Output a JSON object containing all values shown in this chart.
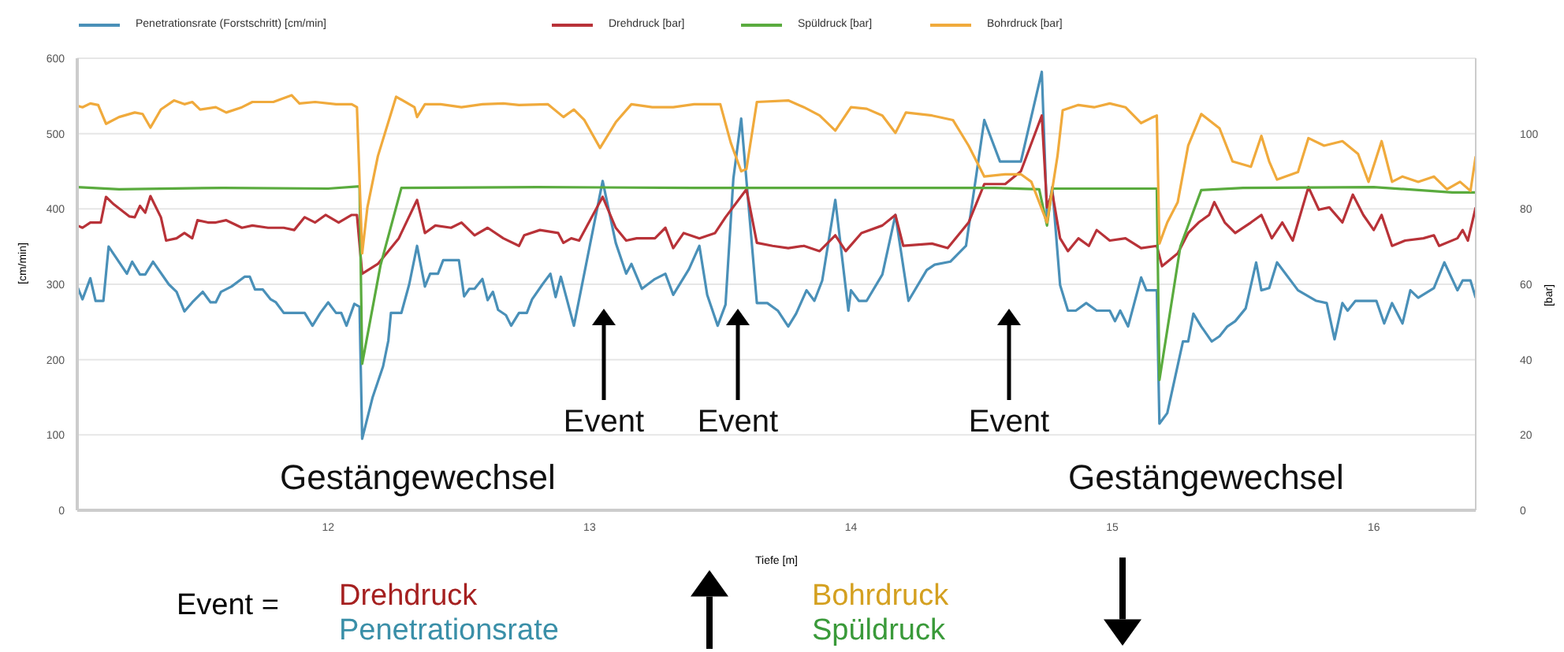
{
  "chart_data": {
    "type": "line",
    "xlabel": "Tiefe [m]",
    "ylabel": "[cm/min]",
    "y2label": "[bar]",
    "xlim": [
      11.04,
      16.39
    ],
    "xticks": [
      12,
      13,
      14,
      15,
      16
    ],
    "ylim": [
      0,
      600
    ],
    "yticks": [
      0,
      100,
      200,
      300,
      400,
      500,
      600
    ],
    "y2lim": [
      0,
      120
    ],
    "y2ticks": [
      0,
      20,
      40,
      60,
      80,
      100
    ],
    "grid": "y",
    "legend": "top",
    "marker": "none",
    "line_style": "solid",
    "annotations": [
      "Event",
      "Event",
      "Event",
      "Gestängewechsel",
      "Gestängewechsel",
      "Event =",
      "Drehdruck",
      "Penetrationsrate",
      "Bohrdruck",
      "Spüldruck"
    ],
    "series": [
      {
        "name": "Penetrationsrate (Forstschritt) [cm/min]",
        "color": "#4a90b8",
        "axis": "y",
        "x": [
          11.04,
          11.06,
          11.09,
          11.11,
          11.14,
          11.16,
          11.23,
          11.25,
          11.28,
          11.3,
          11.33,
          11.39,
          11.42,
          11.45,
          11.48,
          11.52,
          11.55,
          11.57,
          11.59,
          11.63,
          11.68,
          11.7,
          11.72,
          11.75,
          11.78,
          11.8,
          11.83,
          11.91,
          11.94,
          11.97,
          12.0,
          12.03,
          12.05,
          12.07,
          12.1,
          12.12,
          12.13,
          12.17,
          12.21,
          12.23,
          12.24,
          12.28,
          12.31,
          12.34,
          12.37,
          12.39,
          12.42,
          12.44,
          12.5,
          12.52,
          12.54,
          12.56,
          12.59,
          12.61,
          12.63,
          12.65,
          12.68,
          12.7,
          12.73,
          12.76,
          12.78,
          12.82,
          12.85,
          12.87,
          12.89,
          12.94,
          13.05,
          13.1,
          13.14,
          13.16,
          13.2,
          13.25,
          13.29,
          13.32,
          13.38,
          13.42,
          13.45,
          13.49,
          13.52,
          13.55,
          13.58,
          13.64,
          13.68,
          13.72,
          13.76,
          13.79,
          13.83,
          13.86,
          13.89,
          13.94,
          13.99,
          14.0,
          14.03,
          14.06,
          14.12,
          14.17,
          14.22,
          14.29,
          14.32,
          14.38,
          14.44,
          14.51,
          14.57,
          14.65,
          14.73,
          14.75,
          14.77,
          14.8,
          14.83,
          14.86,
          14.9,
          14.94,
          14.99,
          15.01,
          15.03,
          15.06,
          15.11,
          15.13,
          15.17,
          15.18,
          15.21,
          15.27,
          15.29,
          15.31,
          15.34,
          15.38,
          15.41,
          15.44,
          15.47,
          15.51,
          15.55,
          15.57,
          15.6,
          15.63,
          15.71,
          15.78,
          15.82,
          15.85,
          15.88,
          15.9,
          15.93,
          15.98,
          16.01,
          16.04,
          16.07,
          16.11,
          16.14,
          16.17,
          16.23,
          16.27,
          16.32,
          16.34,
          16.37,
          16.39
        ],
        "values": [
          297,
          280,
          308,
          278,
          278,
          350,
          314,
          330,
          313,
          313,
          330,
          300,
          290,
          264,
          276,
          290,
          276,
          276,
          290,
          297,
          310,
          310,
          293,
          293,
          280,
          276,
          262,
          262,
          245,
          262,
          276,
          262,
          262,
          245,
          274,
          270,
          95,
          150,
          191,
          225,
          262,
          262,
          300,
          351,
          297,
          314,
          314,
          332,
          332,
          284,
          294,
          294,
          307,
          279,
          290,
          266,
          259,
          245,
          262,
          262,
          280,
          300,
          314,
          283,
          310,
          245,
          437,
          355,
          314,
          327,
          294,
          307,
          314,
          286,
          320,
          351,
          286,
          245,
          273,
          440,
          520,
          275,
          275,
          265,
          244,
          261,
          292,
          278,
          305,
          412,
          265,
          292,
          278,
          278,
          313,
          392,
          278,
          319,
          326,
          330,
          351,
          518,
          463,
          463,
          582,
          388,
          429,
          299,
          265,
          265,
          275,
          265,
          265,
          251,
          265,
          244,
          309,
          292,
          292,
          115,
          129,
          224,
          224,
          261,
          244,
          224,
          231,
          244,
          251,
          268,
          329,
          292,
          295,
          329,
          292,
          278,
          275,
          227,
          275,
          265,
          278,
          278,
          278,
          248,
          275,
          248,
          292,
          282,
          295,
          329,
          292,
          305,
          305,
          282
        ]
      },
      {
        "name": "Drehdruck [bar]",
        "color": "#b83238",
        "axis": "y2",
        "x": [
          11.04,
          11.06,
          11.09,
          11.13,
          11.15,
          11.18,
          11.24,
          11.26,
          11.28,
          11.3,
          11.32,
          11.36,
          11.38,
          11.42,
          11.45,
          11.48,
          11.5,
          11.54,
          11.57,
          11.61,
          11.67,
          11.71,
          11.77,
          11.83,
          11.87,
          11.91,
          11.95,
          11.99,
          12.04,
          12.09,
          12.11,
          12.13,
          12.19,
          12.27,
          12.34,
          12.37,
          12.41,
          12.47,
          12.51,
          12.56,
          12.61,
          12.67,
          12.73,
          12.75,
          12.81,
          12.88,
          12.9,
          12.93,
          12.96,
          13.05,
          13.1,
          13.14,
          13.18,
          13.25,
          13.29,
          13.32,
          13.36,
          13.42,
          13.48,
          13.52,
          13.6,
          13.64,
          13.7,
          13.76,
          13.82,
          13.88,
          13.94,
          13.98,
          14.04,
          14.12,
          14.17,
          14.2,
          14.31,
          14.37,
          14.45,
          14.51,
          14.59,
          14.65,
          14.73,
          14.75,
          14.77,
          14.8,
          14.83,
          14.87,
          14.91,
          14.94,
          14.99,
          15.05,
          15.11,
          15.17,
          15.19,
          15.25,
          15.29,
          15.33,
          15.37,
          15.39,
          15.43,
          15.47,
          15.53,
          15.57,
          15.61,
          15.65,
          15.69,
          15.75,
          15.79,
          15.83,
          15.88,
          15.92,
          15.96,
          16.0,
          16.03,
          16.07,
          16.12,
          16.19,
          16.23,
          16.25,
          16.32,
          16.34,
          16.36,
          16.39
        ],
        "values": [
          75.6,
          75,
          76.4,
          76.4,
          83.2,
          81.2,
          78,
          77.8,
          80.8,
          79,
          83.4,
          77.8,
          71.6,
          72.2,
          73.6,
          72.2,
          77,
          76.4,
          76.4,
          77,
          75,
          75.6,
          75,
          75,
          74.4,
          77.8,
          76.4,
          78.4,
          76.4,
          78.4,
          78.4,
          62.8,
          65.4,
          72.2,
          82.4,
          73.6,
          75.6,
          75,
          76.4,
          73,
          75,
          72.2,
          70.2,
          73,
          74.4,
          73.6,
          71,
          72.2,
          71.6,
          83.2,
          75,
          71.6,
          72.2,
          72.2,
          75,
          69.6,
          73.6,
          72.2,
          73.6,
          77.8,
          85.2,
          71,
          70.2,
          69.6,
          70.2,
          68.8,
          73,
          68.8,
          73.6,
          75.6,
          78.4,
          70.2,
          70.8,
          69.6,
          76.4,
          86.6,
          86.6,
          90,
          104.8,
          80.4,
          84.4,
          72.2,
          68.8,
          72.2,
          70.2,
          74.4,
          71.6,
          72.2,
          69.6,
          70.2,
          64.8,
          68.2,
          73.6,
          76.4,
          78.4,
          81.8,
          76.4,
          73.6,
          76.4,
          78.4,
          72.2,
          76.4,
          71.6,
          85.8,
          79.8,
          80.4,
          76.4,
          83.8,
          78.4,
          74.4,
          78.4,
          70.2,
          71.6,
          72.2,
          73,
          70.2,
          72.2,
          74.4,
          71.6,
          80.4
        ]
      },
      {
        "name": "Spüldruck [bar]",
        "color": "#5aab3e",
        "axis": "y2",
        "x": [
          11.04,
          11.2,
          11.6,
          12.0,
          12.12,
          12.13,
          12.2,
          12.28,
          12.8,
          13.4,
          14.0,
          14.55,
          14.72,
          14.75,
          14.77,
          15.17,
          15.18,
          15.26,
          15.34,
          15.5,
          16.0,
          16.3,
          16.39
        ],
        "values": [
          85.8,
          85.2,
          85.6,
          85.4,
          86,
          38.9,
          65,
          85.6,
          85.8,
          85.6,
          85.6,
          85.6,
          85.2,
          75.6,
          85.4,
          85.4,
          34.6,
          70,
          85,
          85.6,
          85.8,
          84.4,
          84.4
        ]
      },
      {
        "name": "Bohrdruck [bar]",
        "color": "#f0aa3c",
        "axis": "y2",
        "x": [
          11.04,
          11.06,
          11.09,
          11.12,
          11.15,
          11.2,
          11.26,
          11.29,
          11.32,
          11.36,
          11.41,
          11.45,
          11.48,
          11.51,
          11.57,
          11.61,
          11.67,
          11.71,
          11.79,
          11.86,
          11.89,
          11.95,
          12.03,
          12.09,
          12.11,
          12.13,
          12.15,
          12.19,
          12.26,
          12.33,
          12.34,
          12.37,
          12.43,
          12.51,
          12.59,
          12.67,
          12.73,
          12.84,
          12.9,
          12.94,
          12.98,
          13.04,
          13.1,
          13.16,
          13.24,
          13.32,
          13.4,
          13.44,
          13.5,
          13.54,
          13.58,
          13.6,
          13.64,
          13.76,
          13.82,
          13.88,
          13.94,
          14.0,
          14.06,
          14.12,
          14.17,
          14.21,
          14.31,
          14.39,
          14.45,
          14.51,
          14.59,
          14.65,
          14.69,
          14.75,
          14.79,
          14.81,
          14.87,
          14.93,
          14.99,
          15.05,
          15.11,
          15.15,
          15.17,
          15.18,
          15.21,
          15.25,
          15.29,
          15.34,
          15.41,
          15.46,
          15.53,
          15.57,
          15.6,
          15.63,
          15.71,
          15.75,
          15.81,
          15.88,
          15.94,
          15.98,
          16.03,
          16.07,
          16.11,
          16.17,
          16.23,
          16.28,
          16.33,
          16.37,
          16.39
        ],
        "values": [
          107.4,
          107,
          108,
          107.6,
          102.6,
          104.4,
          105.6,
          105.2,
          101.6,
          106.4,
          108.8,
          107.8,
          108.4,
          106.4,
          107,
          105.6,
          107,
          108.4,
          108.4,
          110.2,
          108,
          108.4,
          107.8,
          107.8,
          107,
          68.2,
          80.4,
          94,
          109.8,
          107,
          104.4,
          107.8,
          107.8,
          107,
          107.8,
          108,
          107.6,
          107.8,
          104.4,
          106.4,
          103.6,
          96.2,
          103,
          107.8,
          107,
          107,
          107.8,
          107.8,
          107.8,
          97.6,
          90,
          90.6,
          108.4,
          108.8,
          107,
          104.8,
          100.8,
          107,
          106.6,
          104.8,
          100.2,
          105.6,
          104.8,
          103.6,
          96.8,
          88.6,
          89.2,
          89.2,
          87.2,
          76.4,
          94,
          106.2,
          107.6,
          107,
          108,
          107,
          102.8,
          104.2,
          104.8,
          70.8,
          76.4,
          81.8,
          96.8,
          105.2,
          101.4,
          92.6,
          91.2,
          99.4,
          92.6,
          87.8,
          89.8,
          98.8,
          96.8,
          98,
          94.6,
          87.2,
          98,
          87.2,
          88.6,
          87.2,
          88.6,
          85.2,
          87.2,
          84.8,
          94
        ]
      }
    ]
  }
}
